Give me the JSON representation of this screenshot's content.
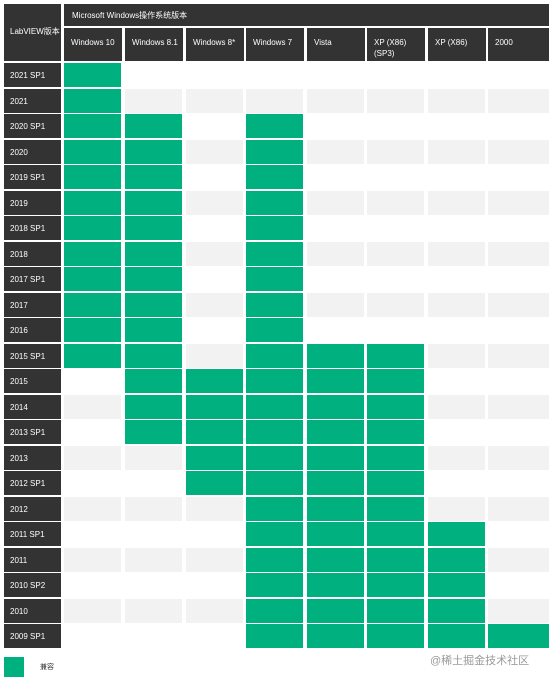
{
  "header": {
    "corner": "LabVIEW版本",
    "group": "Microsoft Windows操作系统版本"
  },
  "os_columns": [
    "Windows 10",
    "Windows 8.1",
    "Windows 8*",
    "Windows 7",
    "Vista",
    "XP (X86)\n(SP3)",
    "XP (X86)",
    "2000"
  ],
  "rows": [
    {
      "label": "2021 SP1",
      "cells": [
        1,
        0,
        0,
        0,
        0,
        0,
        0,
        0
      ]
    },
    {
      "label": "2021",
      "cells": [
        1,
        0,
        0,
        0,
        0,
        0,
        0,
        0
      ]
    },
    {
      "label": "2020 SP1",
      "cells": [
        1,
        1,
        0,
        1,
        0,
        0,
        0,
        0
      ]
    },
    {
      "label": "2020",
      "cells": [
        1,
        1,
        0,
        1,
        0,
        0,
        0,
        0
      ]
    },
    {
      "label": "2019 SP1",
      "cells": [
        1,
        1,
        0,
        1,
        0,
        0,
        0,
        0
      ]
    },
    {
      "label": "2019",
      "cells": [
        1,
        1,
        0,
        1,
        0,
        0,
        0,
        0
      ]
    },
    {
      "label": "2018 SP1",
      "cells": [
        1,
        1,
        0,
        1,
        0,
        0,
        0,
        0
      ]
    },
    {
      "label": "2018",
      "cells": [
        1,
        1,
        0,
        1,
        0,
        0,
        0,
        0
      ]
    },
    {
      "label": "2017 SP1",
      "cells": [
        1,
        1,
        0,
        1,
        0,
        0,
        0,
        0
      ]
    },
    {
      "label": "2017",
      "cells": [
        1,
        1,
        0,
        1,
        0,
        0,
        0,
        0
      ]
    },
    {
      "label": "2016",
      "cells": [
        1,
        1,
        0,
        1,
        0,
        0,
        0,
        0
      ]
    },
    {
      "label": "2015 SP1",
      "cells": [
        1,
        1,
        0,
        1,
        1,
        1,
        0,
        0
      ]
    },
    {
      "label": "2015",
      "cells": [
        0,
        1,
        1,
        1,
        1,
        1,
        0,
        0
      ]
    },
    {
      "label": "2014",
      "cells": [
        0,
        1,
        1,
        1,
        1,
        1,
        0,
        0
      ]
    },
    {
      "label": "2013 SP1",
      "cells": [
        0,
        1,
        1,
        1,
        1,
        1,
        0,
        0
      ]
    },
    {
      "label": "2013",
      "cells": [
        0,
        0,
        1,
        1,
        1,
        1,
        0,
        0
      ]
    },
    {
      "label": "2012 SP1",
      "cells": [
        0,
        0,
        1,
        1,
        1,
        1,
        0,
        0
      ]
    },
    {
      "label": "2012",
      "cells": [
        0,
        0,
        0,
        1,
        1,
        1,
        0,
        0
      ]
    },
    {
      "label": "2011 SP1",
      "cells": [
        0,
        0,
        0,
        1,
        1,
        1,
        1,
        0
      ]
    },
    {
      "label": "2011",
      "cells": [
        0,
        0,
        0,
        1,
        1,
        1,
        1,
        0
      ]
    },
    {
      "label": "2010 SP2",
      "cells": [
        0,
        0,
        0,
        1,
        1,
        1,
        1,
        0
      ]
    },
    {
      "label": "2010",
      "cells": [
        0,
        0,
        0,
        1,
        1,
        1,
        1,
        0
      ]
    },
    {
      "label": "2009 SP1",
      "cells": [
        0,
        0,
        0,
        1,
        1,
        1,
        1,
        1
      ]
    }
  ],
  "legend": {
    "label": "兼容",
    "color": "#00b07f"
  },
  "watermark": "@稀土掘金技术社区",
  "colors": {
    "compatible": "#00b07f",
    "header": "#333333",
    "stripe": "#f2f2f2"
  }
}
